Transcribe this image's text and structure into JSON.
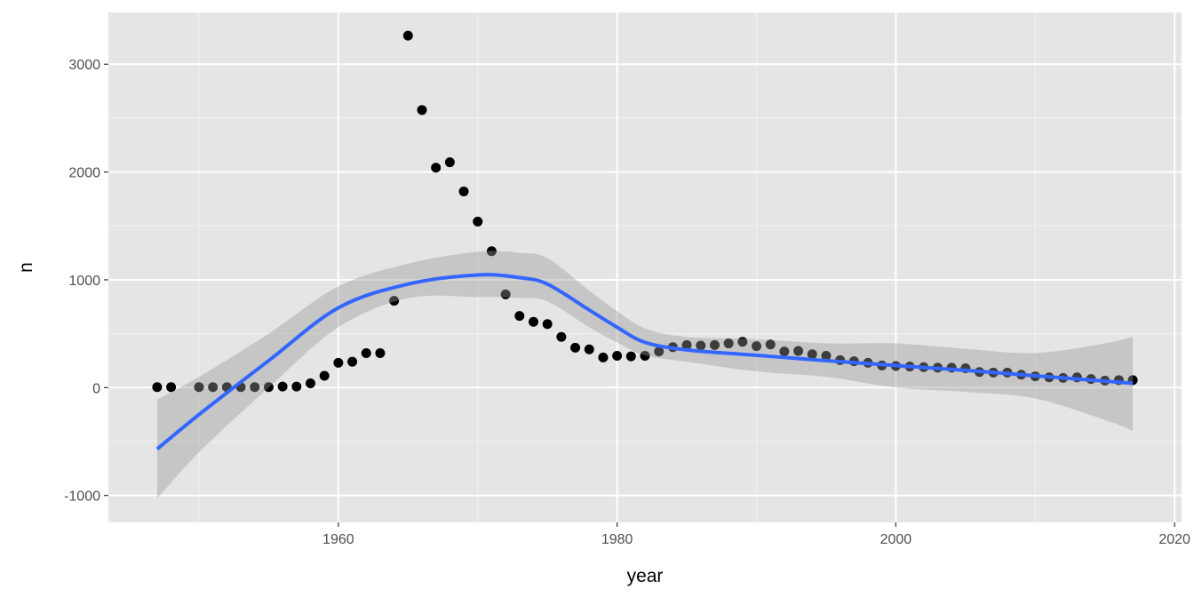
{
  "chart_data": {
    "type": "scatter",
    "title": "",
    "xlabel": "year",
    "ylabel": "n",
    "xlim": [
      1943.5,
      2020.5
    ],
    "ylim": [
      -1250,
      3480
    ],
    "x_ticks": [
      1960,
      1980,
      2000,
      2020
    ],
    "x_tick_labels": [
      "1960",
      "1980",
      "2000",
      "2020"
    ],
    "y_ticks": [
      -1000,
      0,
      1000,
      2000,
      3000
    ],
    "y_tick_labels": [
      "-1000",
      "0",
      "1000",
      "2000",
      "3000"
    ],
    "grid": true,
    "colors": {
      "panel": "#e5e5e5",
      "grid": "#ffffff",
      "point": "#000000",
      "line": "#3366ff",
      "ribbon": "#999999"
    },
    "points": {
      "x": [
        1947,
        1948,
        1950,
        1951,
        1952,
        1953,
        1954,
        1955,
        1956,
        1957,
        1958,
        1959,
        1960,
        1961,
        1962,
        1963,
        1964,
        1965,
        1966,
        1967,
        1968,
        1969,
        1970,
        1971,
        1972,
        1973,
        1974,
        1975,
        1976,
        1977,
        1978,
        1979,
        1980,
        1981,
        1982,
        1983,
        1984,
        1985,
        1986,
        1987,
        1988,
        1989,
        1990,
        1991,
        1992,
        1993,
        1994,
        1995,
        1996,
        1997,
        1998,
        1999,
        2000,
        2001,
        2002,
        2003,
        2004,
        2005,
        2006,
        2007,
        2008,
        2009,
        2010,
        2011,
        2012,
        2013,
        2014,
        2015,
        2016,
        2017
      ],
      "y": [
        5,
        5,
        5,
        5,
        5,
        5,
        5,
        5,
        10,
        10,
        40,
        110,
        230,
        240,
        320,
        320,
        805,
        3265,
        2575,
        2040,
        2090,
        1820,
        1540,
        1265,
        865,
        665,
        610,
        590,
        470,
        370,
        355,
        280,
        295,
        290,
        295,
        335,
        375,
        395,
        390,
        395,
        410,
        425,
        385,
        400,
        335,
        340,
        310,
        295,
        255,
        245,
        230,
        205,
        200,
        195,
        190,
        185,
        185,
        180,
        145,
        140,
        140,
        120,
        105,
        95,
        90,
        95,
        80,
        65,
        70,
        70
      ]
    },
    "smooth": {
      "method": "loess",
      "x": [
        1947,
        1950,
        1955,
        1960,
        1965,
        1970,
        1973,
        1975,
        1978,
        1980,
        1982,
        1985,
        1990,
        1995,
        2000,
        2005,
        2010,
        2015,
        2017
      ],
      "y": [
        -570,
        -250,
        250,
        740,
        960,
        1045,
        1020,
        960,
        720,
        560,
        420,
        350,
        300,
        250,
        205,
        160,
        110,
        60,
        40
      ],
      "ymin": [
        -1030,
        -600,
        0,
        560,
        830,
        840,
        830,
        800,
        560,
        420,
        300,
        240,
        150,
        100,
        0,
        -40,
        -100,
        -300,
        -400
      ],
      "ymax": [
        -110,
        100,
        500,
        940,
        1150,
        1260,
        1250,
        1200,
        900,
        710,
        550,
        470,
        450,
        410,
        410,
        360,
        320,
        410,
        470
      ]
    }
  }
}
